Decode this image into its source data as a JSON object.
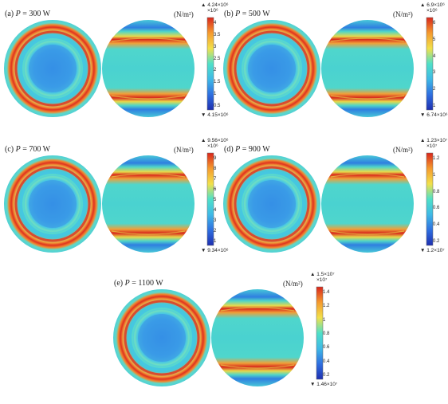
{
  "unit_label": "(N/m²)",
  "colormap_stops": [
    "#1e2fb0",
    "#2f6fe0",
    "#3fb9e6",
    "#4fe0c8",
    "#f2e04a",
    "#f59a2e",
    "#d8261c"
  ],
  "panels": [
    {
      "id": "a",
      "prefix": "(a) ",
      "var": "P",
      "value": " = 300 W",
      "max_label": "▲ 4.24×10⁶",
      "exp_label": "×10⁶",
      "min_label": "▼ 4.15×10⁶",
      "ticks": [
        "4",
        "3.5",
        "3",
        "2.5",
        "2",
        "1.5",
        "1",
        "0.5"
      ]
    },
    {
      "id": "b",
      "prefix": "(b) ",
      "var": "P",
      "value": " = 500 W",
      "max_label": "▲ 6.9×10⁶",
      "exp_label": "×10⁶",
      "min_label": "▼ 6.74×10⁶",
      "ticks": [
        "6",
        "5",
        "4",
        "3",
        "2",
        "1"
      ]
    },
    {
      "id": "c",
      "prefix": "(c) ",
      "var": "P",
      "value": " = 700 W",
      "max_label": "▲ 9.56×10⁶",
      "exp_label": "×10⁶",
      "min_label": "▼ 9.34×10⁶",
      "ticks": [
        "9",
        "8",
        "7",
        "6",
        "5",
        "4",
        "3",
        "2",
        "1"
      ]
    },
    {
      "id": "d",
      "prefix": "(d) ",
      "var": "P",
      "value": " = 900 W",
      "max_label": "▲ 1.23×10⁷",
      "exp_label": "×10⁷",
      "min_label": "▼ 1.2×10⁷",
      "ticks": [
        "1.2",
        "1",
        "0.8",
        "0.6",
        "0.4",
        "0.2"
      ]
    },
    {
      "id": "e",
      "prefix": "(e) ",
      "var": "P",
      "value": " = 1100 W",
      "max_label": "▲ 1.5×10⁷",
      "exp_label": "×10⁷",
      "min_label": "▼ 1.46×10⁷",
      "ticks": [
        "1.4",
        "1.2",
        "1",
        "0.8",
        "0.6",
        "0.4",
        "0.2"
      ]
    }
  ]
}
